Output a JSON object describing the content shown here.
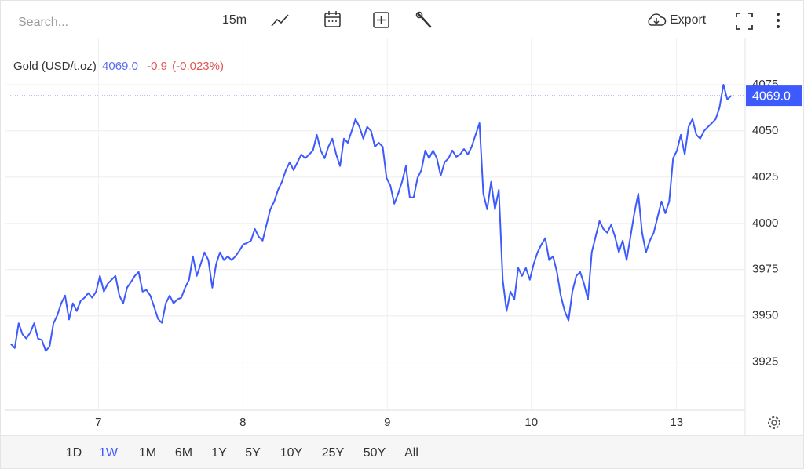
{
  "toolbar": {
    "search_placeholder": "Search...",
    "interval": "15m",
    "export": "Export"
  },
  "ranges": [
    "1D",
    "1W",
    "1M",
    "6M",
    "1Y",
    "5Y",
    "10Y",
    "25Y",
    "50Y",
    "All"
  ],
  "active_range": "1W",
  "chart_data": {
    "type": "line",
    "title": "Gold (USD/t.oz)",
    "last": "4069.0",
    "change": "-0.9",
    "change_pct": "(-0.023%)",
    "color": "#3d5afe",
    "grid": true,
    "last_price": {
      "value": 4069,
      "label": "4069.0"
    },
    "xlim": [
      -1.6,
      189.6
    ],
    "xticks": [
      {
        "value": 22.6,
        "label": "7"
      },
      {
        "value": 59.9,
        "label": "8"
      },
      {
        "value": 97.2,
        "label": "9"
      },
      {
        "value": 134.4,
        "label": "10"
      },
      {
        "value": 171.9,
        "label": "13"
      }
    ],
    "ylim": [
      3899,
      4100
    ],
    "yticks": [
      3925,
      3950,
      3975,
      4000,
      4025,
      4050,
      4075
    ],
    "x": [
      0,
      1,
      2,
      3,
      4,
      5,
      6,
      7,
      8,
      9,
      10,
      11,
      12,
      13,
      14,
      15,
      16,
      17,
      18,
      19,
      20,
      21,
      22,
      23,
      24,
      25,
      26,
      27,
      28,
      29,
      30,
      31,
      32,
      33,
      34,
      35,
      36,
      37,
      38,
      39,
      40,
      41,
      42,
      43,
      44,
      45,
      46,
      47,
      48,
      49,
      50,
      51,
      52,
      53,
      54,
      55,
      56,
      57,
      58,
      59,
      60,
      61,
      62,
      63,
      64,
      65,
      66,
      67,
      68,
      69,
      70,
      71,
      72,
      73,
      74,
      75,
      76,
      77,
      78,
      79,
      80,
      81,
      82,
      83,
      84,
      85,
      86,
      87,
      88,
      89,
      90,
      91,
      92,
      93,
      94,
      95,
      96,
      97,
      98,
      99,
      100,
      101,
      102,
      103,
      104,
      105,
      106,
      107,
      108,
      109,
      110,
      111,
      112,
      113,
      114,
      115,
      116,
      117,
      118,
      119,
      120,
      121,
      122,
      123,
      124,
      125,
      126,
      127,
      128,
      129,
      130,
      131,
      132,
      133,
      134,
      135,
      136,
      137,
      138,
      139,
      140,
      141,
      142,
      143,
      144,
      145,
      146,
      147,
      148,
      149,
      150,
      151,
      152,
      153,
      154,
      155,
      156,
      157,
      158,
      159,
      160,
      161,
      162,
      163,
      164,
      165,
      166,
      167,
      168,
      169,
      170,
      171,
      172,
      173,
      174,
      175,
      176,
      177,
      178,
      179,
      180,
      181,
      182,
      183,
      184,
      185,
      186
    ],
    "values": [
      3934.8,
      3932.6,
      3946,
      3940,
      3937.7,
      3941,
      3946,
      3937.7,
      3936.9,
      3931,
      3933.5,
      3946,
      3950.4,
      3956.8,
      3961,
      3948,
      3956.8,
      3952.6,
      3958.1,
      3959.8,
      3962.3,
      3959.8,
      3963.1,
      3971.6,
      3963.1,
      3967.4,
      3969.5,
      3971.6,
      3961,
      3956.8,
      3965.3,
      3968.3,
      3971.6,
      3973.7,
      3963.1,
      3964,
      3961,
      3954.7,
      3948.3,
      3946.2,
      3956.8,
      3961,
      3956.8,
      3958.9,
      3959.8,
      3965.3,
      3969.5,
      3982.2,
      3971.6,
      3978,
      3984.3,
      3980.1,
      3965.3,
      3978,
      3984.3,
      3980.1,
      3982.2,
      3980.1,
      3982.2,
      3985.2,
      3988.6,
      3989.4,
      3990.7,
      3997,
      3992.8,
      3990.7,
      3999.2,
      4007.6,
      4011.9,
      4018.2,
      4022.5,
      4028.8,
      4033.1,
      4028.8,
      4033.1,
      4037.3,
      4035.2,
      4037.3,
      4039.4,
      4047.9,
      4039.4,
      4035.2,
      4041.5,
      4045.8,
      4037.3,
      4031,
      4045.8,
      4043.6,
      4050,
      4056.4,
      4052.2,
      4045.8,
      4052.2,
      4050,
      4041.5,
      4043.6,
      4041.5,
      4024.6,
      4020.4,
      4010.6,
      4016.1,
      4022.5,
      4031,
      4014,
      4014,
      4024.6,
      4028.8,
      4039.4,
      4035.2,
      4039.4,
      4035.2,
      4025.8,
      4033.1,
      4035.2,
      4039.4,
      4036,
      4037.3,
      4040.2,
      4037.3,
      4041.5,
      4047.9,
      4054.2,
      4016.1,
      4007.6,
      4022.5,
      4007.6,
      4018.2,
      3969.5,
      3952.6,
      3963.1,
      3958.9,
      3975.9,
      3971.6,
      3975.9,
      3969.5,
      3978,
      3984.3,
      3988.6,
      3992,
      3980.1,
      3982.2,
      3973.7,
      3961,
      3952.6,
      3947.5,
      3963.1,
      3971.6,
      3973.7,
      3967.4,
      3958.9,
      3984.3,
      3992.8,
      4001.3,
      3997,
      3994.9,
      3999.2,
      3992.8,
      3984.3,
      3990.7,
      3980.1,
      3992.8,
      4005.5,
      4016.1,
      3994.9,
      3984.3,
      3990.7,
      3994.9,
      4003.4,
      4011.9,
      4005.5,
      4011.9,
      4035.2,
      4039.4,
      4047.9,
      4037.3,
      4052.2,
      4056.4,
      4047.9,
      4045.8,
      4050,
      4052.2,
      4054.2,
      4056.4,
      4062.7,
      4075,
      4067,
      4069
    ]
  }
}
